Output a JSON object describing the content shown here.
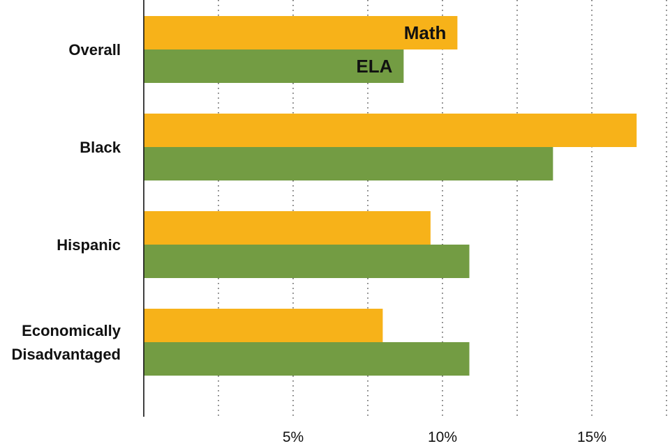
{
  "chart_data": {
    "type": "bar",
    "orientation": "horizontal",
    "categories": [
      "Overall",
      "Black",
      "Hispanic",
      "Economically Disadvantaged"
    ],
    "category_lines": [
      [
        "Overall"
      ],
      [
        "Black"
      ],
      [
        "Hispanic"
      ],
      [
        "Economically",
        "Disadvantaged"
      ]
    ],
    "series": [
      {
        "name": "Math",
        "values": [
          10.5,
          16.5,
          9.6,
          8.0
        ]
      },
      {
        "name": "ELA",
        "values": [
          8.7,
          13.7,
          10.9,
          10.9
        ]
      }
    ],
    "xlim": [
      0,
      17.5
    ],
    "xticks": [
      {
        "value": 5,
        "label": "5%"
      },
      {
        "value": 10,
        "label": "10%"
      },
      {
        "value": 15,
        "label": "15%"
      }
    ],
    "gridlines_at": [
      2.5,
      5,
      7.5,
      10,
      12.5,
      15,
      17.5
    ],
    "grid": "vertical dotted",
    "legend": "inline labels on first category bars",
    "colors": {
      "Math": "#F7B219",
      "ELA": "#739C43",
      "text": "#111111",
      "axis": "#111111",
      "grid": "#555555"
    }
  }
}
